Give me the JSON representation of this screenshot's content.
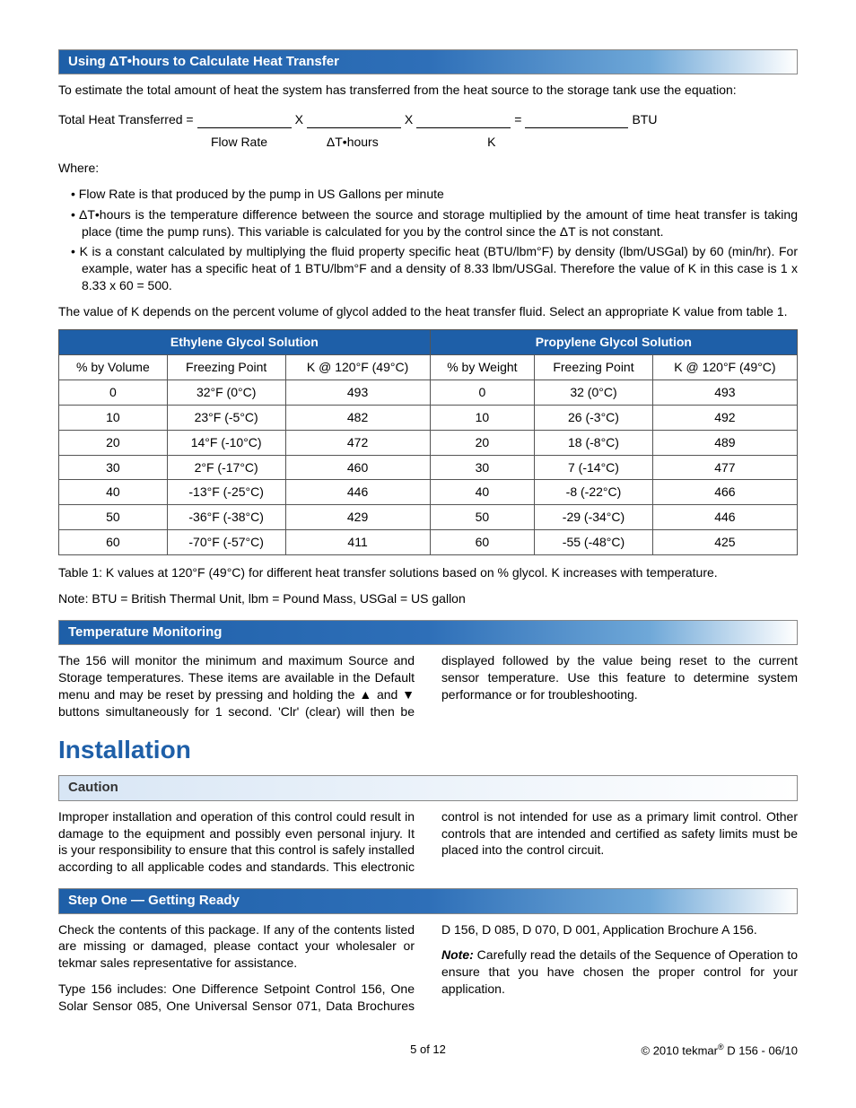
{
  "section1": {
    "title": "Using ΔT•hours to Calculate Heat Transfer",
    "intro": "To estimate the total amount of heat the system has transferred from the heat source to the storage tank use the equation:",
    "eq_label": "Total Heat Transferred =",
    "eq_x": "X",
    "eq_eq": "=",
    "eq_btu": "BTU",
    "eq_sub_flow": "Flow Rate",
    "eq_sub_dt": "ΔT•hours",
    "eq_sub_k": "K",
    "where": "Where:",
    "bullets": [
      "Flow Rate is that produced by the pump in US Gallons per minute",
      "ΔT•hours is the temperature difference between the source and storage multiplied by the amount of time heat transfer is taking place (time the pump runs). This variable is calculated for you by the control since the ΔT is not constant.",
      "K is a constant calculated by multiplying the fluid property specific heat (BTU/lbm°F) by density (lbm/USGal) by 60 (min/hr). For example, water has a specific heat of 1 BTU/lbm°F and a density of 8.33 lbm/USGal. Therefore the value of K in this case is 1 x 8.33 x 60 = 500."
    ],
    "k_note": "The value of K depends on the percent volume of glycol added to the heat transfer fluid. Select an appropriate K value from table 1."
  },
  "table": {
    "group1": "Ethylene Glycol Solution",
    "group2": "Propylene Glycol Solution",
    "headers": [
      "% by Volume",
      "Freezing Point",
      "K @ 120°F (49°C)",
      "% by Weight",
      "Freezing Point",
      "K @ 120°F (49°C)"
    ],
    "rows": [
      [
        "0",
        "32°F (0°C)",
        "493",
        "0",
        "32 (0°C)",
        "493"
      ],
      [
        "10",
        "23°F (-5°C)",
        "482",
        "10",
        "26 (-3°C)",
        "492"
      ],
      [
        "20",
        "14°F (-10°C)",
        "472",
        "20",
        "18 (-8°C)",
        "489"
      ],
      [
        "30",
        "2°F (-17°C)",
        "460",
        "30",
        "7 (-14°C)",
        "477"
      ],
      [
        "40",
        "-13°F (-25°C)",
        "446",
        "40",
        "-8 (-22°C)",
        "466"
      ],
      [
        "50",
        "-36°F (-38°C)",
        "429",
        "50",
        "-29 (-34°C)",
        "446"
      ],
      [
        "60",
        "-70°F (-57°C)",
        "411",
        "60",
        "-55 (-48°C)",
        "425"
      ]
    ],
    "caption": "Table 1: K values at 120°F (49°C) for different heat transfer solutions based on % glycol. K increases with temperature.",
    "note": "Note: BTU = British Thermal Unit, lbm = Pound Mass, USGal = US gallon"
  },
  "tempmon": {
    "title": "Temperature Monitoring",
    "body": "The 156 will monitor the minimum and maximum Source and Storage temperatures. These items are available in the Default menu and may be reset by pressing and holding the ▲ and ▼ buttons simultaneously for 1 second. 'Clr' (clear) will then be displayed followed by the value being reset to the current sensor temperature. Use this feature to determine system performance or for troubleshooting."
  },
  "installation_title": "Installation",
  "caution": {
    "title": "Caution",
    "body": "Improper installation and operation of this control could result in damage to the equipment and possibly even personal injury. It is your responsibility to ensure that this control is safely installed according to all applicable codes and standards. This electronic control is not intended for use as a primary limit control. Other controls that are intended and certified as safety limits must be placed into the control circuit."
  },
  "step1": {
    "title": "Step One — Getting Ready",
    "p1": "Check the contents of this package. If any of the contents listed are missing or damaged, please contact your wholesaler or tekmar sales representative for assistance.",
    "p2": "Type 156 includes: One Difference Setpoint Control 156, One Solar Sensor 085, One Universal Sensor 071, Data Brochures D 156, D 085, D 070, D 001, Application Brochure A 156.",
    "note_label": "Note:",
    "note_body": " Carefully read the details of the Sequence of Operation to ensure that you have chosen the proper control for your application."
  },
  "footer": {
    "page": "5 of 12",
    "copyright": "© 2010 ",
    "brand": "tekmar",
    "doc": " D 156 - 06/10"
  }
}
